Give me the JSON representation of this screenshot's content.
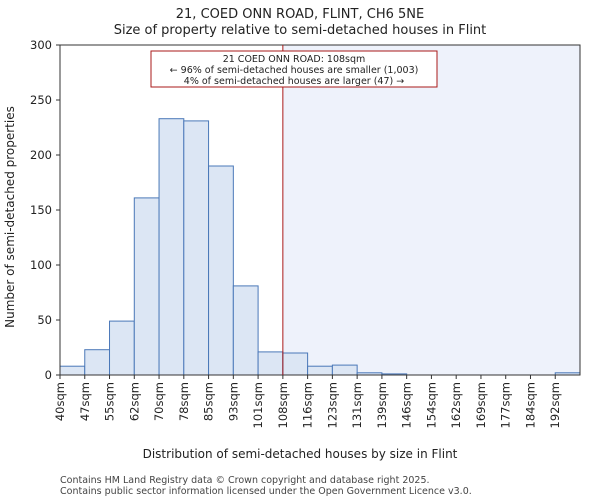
{
  "chart_data": {
    "type": "bar",
    "title_line1": "21, COED ONN ROAD, FLINT, CH6 5NE",
    "title_line2": "Size of property relative to semi-detached houses in Flint",
    "xlabel": "Distribution of semi-detached houses by size in Flint",
    "ylabel": "Number of semi-detached properties",
    "ylim": [
      0,
      300
    ],
    "yticks": [
      0,
      50,
      100,
      150,
      200,
      250,
      300
    ],
    "categories": [
      "40sqm",
      "47sqm",
      "55sqm",
      "62sqm",
      "70sqm",
      "78sqm",
      "85sqm",
      "93sqm",
      "101sqm",
      "108sqm",
      "116sqm",
      "123sqm",
      "131sqm",
      "139sqm",
      "146sqm",
      "154sqm",
      "162sqm",
      "169sqm",
      "177sqm",
      "184sqm",
      "192sqm"
    ],
    "values": [
      8,
      23,
      49,
      161,
      233,
      231,
      190,
      81,
      21,
      20,
      8,
      9,
      2,
      1,
      0,
      0,
      0,
      0,
      0,
      0,
      2
    ],
    "marker_category": "108sqm",
    "annotation": {
      "line1": "21 COED ONN ROAD: 108sqm",
      "line2": "← 96% of semi-detached houses are smaller (1,003)",
      "line3": "4% of semi-detached houses are larger (47) →"
    },
    "colors": {
      "bar_fill": "#dce6f4",
      "bar_stroke": "#4a78b8",
      "marker": "#aa1a1a",
      "highlight_bg": "#eef2fb"
    }
  },
  "footer": {
    "line1": "Contains HM Land Registry data © Crown copyright and database right 2025.",
    "line2": "Contains public sector information licensed under the Open Government Licence v3.0."
  }
}
